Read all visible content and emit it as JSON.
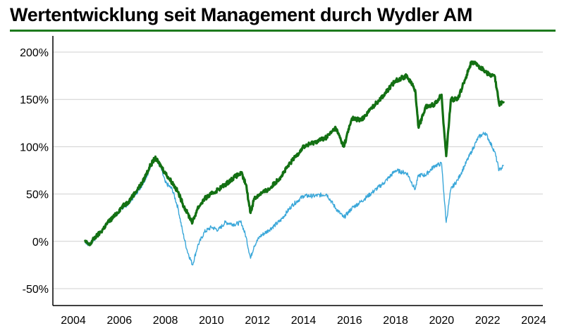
{
  "title": "Wertentwicklung seit Management durch Wydler AM",
  "colors": {
    "fund": "#137013",
    "benchmark": "#3aa7d9",
    "title_rule": "#1d7a1d",
    "grid": "#d0d0d0"
  },
  "chart_data": {
    "type": "line",
    "title": "Wertentwicklung seit Management durch Wydler AM",
    "xlabel": "",
    "ylabel": "",
    "xlim": [
      2004,
      2024
    ],
    "ylim": [
      -0.6,
      2.0
    ],
    "x_ticks": [
      {
        "value": 2004,
        "label": "2004"
      },
      {
        "value": 2006,
        "label": "2006"
      },
      {
        "value": 2008,
        "label": "2008"
      },
      {
        "value": 2010,
        "label": "2010"
      },
      {
        "value": 2012,
        "label": "2012"
      },
      {
        "value": 2014,
        "label": "2014"
      },
      {
        "value": 2016,
        "label": "2016"
      },
      {
        "value": 2018,
        "label": "2018"
      },
      {
        "value": 2020,
        "label": "2020"
      },
      {
        "value": 2022,
        "label": "2022"
      },
      {
        "value": 2024,
        "label": "2024"
      }
    ],
    "y_ticks": [
      {
        "value": 2.0,
        "label": "200%"
      },
      {
        "value": 1.5,
        "label": "150%"
      },
      {
        "value": 1.0,
        "label": "100%"
      },
      {
        "value": 0.5,
        "label": "50%"
      },
      {
        "value": 0.0,
        "label": "0%"
      },
      {
        "value": -0.5,
        "label": "-50%"
      }
    ],
    "grid": "horizontal",
    "legend": "none",
    "series": [
      {
        "color": "#3aa7d9",
        "x": [
          2004.5,
          2004.7,
          2004.9,
          2005.2,
          2005.5,
          2005.8,
          2006.1,
          2006.4,
          2006.7,
          2007.0,
          2007.3,
          2007.55,
          2007.8,
          2008.0,
          2008.3,
          2008.55,
          2008.75,
          2008.95,
          2009.18,
          2009.4,
          2009.7,
          2010.0,
          2010.3,
          2010.6,
          2011.0,
          2011.3,
          2011.5,
          2011.7,
          2011.85,
          2012.1,
          2012.5,
          2013.0,
          2013.5,
          2014.0,
          2014.5,
          2015.0,
          2015.4,
          2015.75,
          2016.1,
          2016.5,
          2017.0,
          2017.5,
          2018.0,
          2018.5,
          2018.85,
          2019.0,
          2019.3,
          2019.7,
          2020.0,
          2020.1,
          2020.2,
          2020.4,
          2020.7,
          2021.0,
          2021.3,
          2021.6,
          2021.9,
          2022.1,
          2022.3,
          2022.5,
          2022.7
        ],
        "values": [
          0.0,
          -0.04,
          0.02,
          0.1,
          0.2,
          0.26,
          0.35,
          0.4,
          0.5,
          0.6,
          0.75,
          0.9,
          0.78,
          0.62,
          0.55,
          0.35,
          0.1,
          -0.1,
          -0.25,
          -0.05,
          0.1,
          0.15,
          0.12,
          0.2,
          0.18,
          0.2,
          0.05,
          -0.18,
          -0.05,
          0.05,
          0.12,
          0.22,
          0.38,
          0.48,
          0.48,
          0.5,
          0.35,
          0.25,
          0.35,
          0.42,
          0.52,
          0.62,
          0.75,
          0.72,
          0.55,
          0.7,
          0.7,
          0.8,
          0.82,
          0.5,
          0.2,
          0.55,
          0.65,
          0.8,
          0.95,
          1.1,
          1.15,
          1.05,
          0.95,
          0.75,
          0.8
        ]
      },
      {
        "color": "#137013",
        "x": [
          2004.5,
          2004.7,
          2004.9,
          2005.2,
          2005.5,
          2005.8,
          2006.1,
          2006.4,
          2006.7,
          2007.0,
          2007.3,
          2007.55,
          2007.8,
          2008.0,
          2008.3,
          2008.55,
          2008.75,
          2008.95,
          2009.18,
          2009.4,
          2009.7,
          2010.0,
          2010.3,
          2010.6,
          2011.0,
          2011.3,
          2011.5,
          2011.7,
          2011.85,
          2012.1,
          2012.5,
          2013.0,
          2013.5,
          2014.0,
          2014.5,
          2015.0,
          2015.4,
          2015.75,
          2016.1,
          2016.5,
          2017.0,
          2017.5,
          2018.0,
          2018.5,
          2018.85,
          2019.0,
          2019.3,
          2019.7,
          2020.0,
          2020.1,
          2020.2,
          2020.4,
          2020.7,
          2021.0,
          2021.3,
          2021.6,
          2021.9,
          2022.1,
          2022.3,
          2022.5,
          2022.7
        ],
        "values": [
          0.0,
          -0.04,
          0.03,
          0.1,
          0.2,
          0.27,
          0.36,
          0.42,
          0.52,
          0.62,
          0.78,
          0.88,
          0.8,
          0.72,
          0.62,
          0.52,
          0.4,
          0.3,
          0.2,
          0.35,
          0.45,
          0.5,
          0.55,
          0.6,
          0.68,
          0.72,
          0.6,
          0.3,
          0.45,
          0.5,
          0.55,
          0.68,
          0.85,
          1.0,
          1.05,
          1.1,
          1.2,
          1.0,
          1.3,
          1.28,
          1.42,
          1.55,
          1.7,
          1.75,
          1.6,
          1.2,
          1.42,
          1.45,
          1.55,
          1.2,
          0.9,
          1.5,
          1.5,
          1.7,
          1.9,
          1.85,
          1.8,
          1.75,
          1.75,
          1.45,
          1.48
        ]
      }
    ]
  }
}
